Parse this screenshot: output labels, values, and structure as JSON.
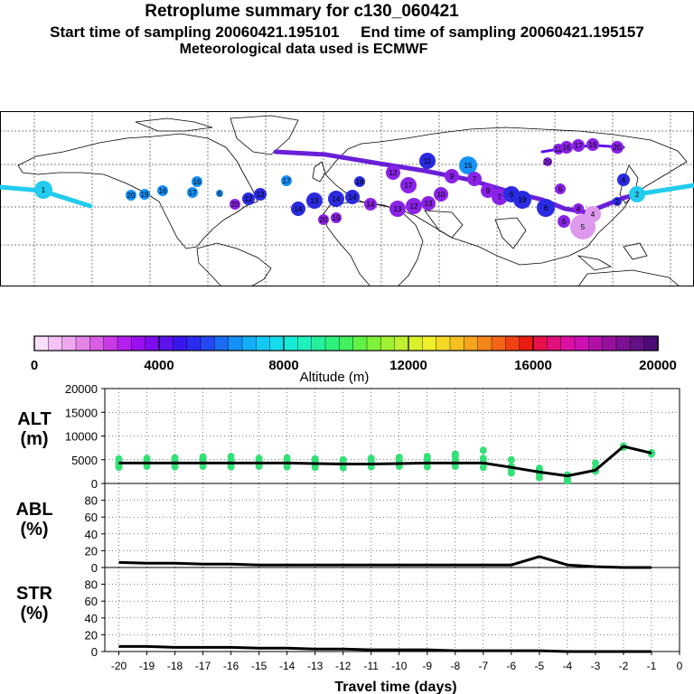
{
  "header": {
    "title": "Retroplume summary for c130_060421",
    "sampling_line": "Start time of sampling 20060421.195101     End time of sampling 20060421.195157",
    "met_line": "Meteorological data used is ECMWF"
  },
  "colors": {
    "track_cyan": "#22ccee",
    "track_purple": "#6a1fd8",
    "marker_blue": "#2a2ae0",
    "marker_violet": "#8a22e6",
    "marker_lavender": "#dd99ee",
    "scatter_green": "#33e077",
    "line": "#000000"
  },
  "map": {
    "day_labels": [
      "1",
      "2",
      "3",
      "4",
      "5",
      "6",
      "7",
      "8",
      "9",
      "10",
      "11",
      "12",
      "13",
      "14",
      "15",
      "16",
      "17",
      "18",
      "19",
      "20"
    ]
  },
  "colorbar": {
    "xlabel": "Altitude (m)",
    "ticks": [
      "0",
      "4000",
      "8000",
      "12000",
      "16000",
      "20000"
    ],
    "range": [
      0,
      20000
    ],
    "colors": [
      "#fbe0fb",
      "#f5c2f5",
      "#eea6ee",
      "#e384e6",
      "#d95ee3",
      "#c93ae6",
      "#b41ff0",
      "#9a10f0",
      "#7d0cef",
      "#5c12ee",
      "#3a16ee",
      "#2a2af0",
      "#2448f2",
      "#1c6cf4",
      "#1490f6",
      "#14aef6",
      "#14c8f4",
      "#14dcec",
      "#18ead8",
      "#20f0bc",
      "#26f09c",
      "#2cf07a",
      "#40f05c",
      "#60f046",
      "#80f03a",
      "#a0f034",
      "#c0f02e",
      "#daf02a",
      "#f0ee2a",
      "#f4d826",
      "#f6c022",
      "#f6a41e",
      "#f6861a",
      "#f46416",
      "#f04012",
      "#ec1c12",
      "#e8124a",
      "#e2107a",
      "#dc10a2",
      "#cc10b4",
      "#b010a8",
      "#96109c",
      "#7c1090",
      "#641084",
      "#4c0c78"
    ]
  },
  "chart_data": [
    {
      "type": "scatter+line",
      "name": "ALT",
      "ylabel": "ALT\n(m)",
      "ylabel_lines": [
        "ALT",
        "(m)"
      ],
      "ylim": [
        0,
        20000
      ],
      "yticks": [
        "0",
        "5000",
        "10000",
        "15000",
        "20000"
      ],
      "x": [
        -20,
        -19,
        -18,
        -17,
        -16,
        -15,
        -14,
        -13,
        -12,
        -11,
        -10,
        -9,
        -8,
        -7,
        -6,
        -5,
        -4,
        -3,
        -2,
        -1
      ],
      "line_x": [
        -20,
        -19,
        -18,
        -17,
        -16,
        -15,
        -14,
        -13,
        -12,
        -11,
        -10,
        -9,
        -8,
        -7,
        -6,
        -5,
        -4,
        -3,
        -2,
        -1
      ],
      "line_y": [
        4300,
        4300,
        4300,
        4300,
        4300,
        4300,
        4300,
        4200,
        4100,
        4100,
        4200,
        4300,
        4300,
        4300,
        3400,
        2400,
        1600,
        2800,
        7800,
        6400
      ],
      "scatter": [
        {
          "x": -20,
          "y": [
            3400,
            4000,
            4500,
            5200
          ]
        },
        {
          "x": -19,
          "y": [
            3600,
            4200,
            4800,
            5300
          ]
        },
        {
          "x": -18,
          "y": [
            3500,
            4300,
            4700,
            5400
          ]
        },
        {
          "x": -17,
          "y": [
            3600,
            4400,
            5000,
            5600
          ]
        },
        {
          "x": -16,
          "y": [
            3500,
            4200,
            4900,
            5700
          ]
        },
        {
          "x": -15,
          "y": [
            3600,
            4300,
            4700,
            5300
          ]
        },
        {
          "x": -14,
          "y": [
            3500,
            4100,
            4800,
            5400
          ]
        },
        {
          "x": -13,
          "y": [
            3400,
            4000,
            4600,
            5200
          ]
        },
        {
          "x": -12,
          "y": [
            3300,
            3900,
            4500,
            5000
          ]
        },
        {
          "x": -11,
          "y": [
            3500,
            4100,
            4700,
            5300
          ]
        },
        {
          "x": -10,
          "y": [
            3600,
            4200,
            4800,
            5500
          ]
        },
        {
          "x": -9,
          "y": [
            3500,
            4300,
            5000,
            5700
          ]
        },
        {
          "x": -8,
          "y": [
            3600,
            4200,
            4900,
            5800,
            6200
          ]
        },
        {
          "x": -7,
          "y": [
            3400,
            4500,
            5300,
            7000
          ]
        },
        {
          "x": -6,
          "y": [
            2200,
            3000,
            3600,
            5000
          ]
        },
        {
          "x": -5,
          "y": [
            1200,
            2000,
            2700,
            3200
          ]
        },
        {
          "x": -4,
          "y": [
            500,
            900,
            1300,
            1800
          ]
        },
        {
          "x": -3,
          "y": [
            2600,
            3200,
            4300
          ]
        },
        {
          "x": -2,
          "y": [
            7600,
            7900
          ]
        },
        {
          "x": -1,
          "y": [
            6200,
            6500
          ]
        }
      ]
    },
    {
      "type": "line",
      "name": "ABL",
      "ylabel": "ABL\n(%)",
      "ylabel_lines": [
        "ABL",
        "(%)"
      ],
      "ylim": [
        0,
        100
      ],
      "yticks": [
        "0",
        "20",
        "40",
        "60",
        "80"
      ],
      "x": [
        -20,
        -19,
        -18,
        -17,
        -16,
        -15,
        -14,
        -13,
        -12,
        -11,
        -10,
        -9,
        -8,
        -7,
        -6,
        -5,
        -4,
        -3,
        -2,
        -1
      ],
      "y": [
        6,
        5,
        5,
        4,
        4,
        3,
        3,
        3,
        3,
        3,
        3,
        3,
        3,
        3,
        3,
        13,
        3,
        1,
        0,
        0
      ]
    },
    {
      "type": "line",
      "name": "STR",
      "ylabel": "STR\n(%)",
      "ylabel_lines": [
        "STR",
        "(%)"
      ],
      "ylim": [
        0,
        100
      ],
      "yticks": [
        "0",
        "20",
        "40",
        "60",
        "80"
      ],
      "x": [
        -20,
        -19,
        -18,
        -17,
        -16,
        -15,
        -14,
        -13,
        -12,
        -11,
        -10,
        -9,
        -8,
        -7,
        -6,
        -5,
        -4,
        -3,
        -2,
        -1
      ],
      "y": [
        6,
        6,
        5,
        5,
        5,
        4,
        4,
        3,
        3,
        2,
        2,
        2,
        1,
        1,
        1,
        1,
        0,
        0,
        0,
        0
      ]
    }
  ],
  "xaxis": {
    "label": "Travel time (days)",
    "ticks": [
      "-20",
      "-19",
      "-18",
      "-17",
      "-16",
      "-15",
      "-14",
      "-13",
      "-12",
      "-11",
      "-10",
      "-9",
      "-8",
      "-7",
      "-6",
      "-5",
      "-4",
      "-3",
      "-2",
      "-1",
      "0"
    ]
  }
}
